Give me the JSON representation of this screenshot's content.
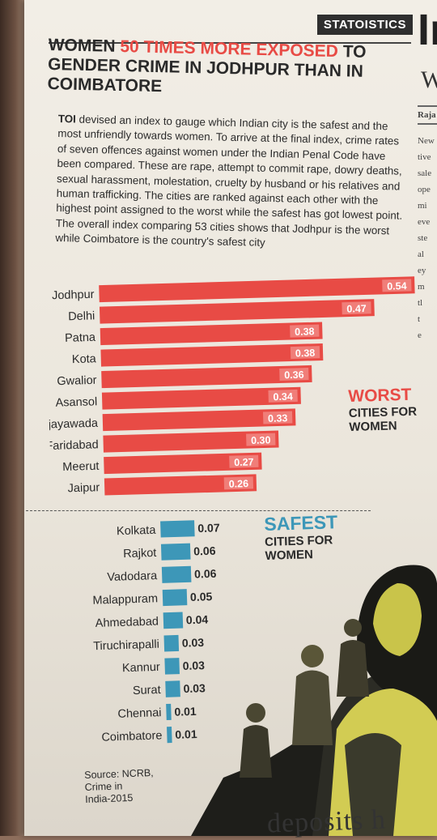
{
  "kicker": "STATOISTICS",
  "headline": {
    "part1": "WOMEN ",
    "highlight": "50 TIMES MORE EXPOSED",
    "part2": " TO GENDER CRIME IN JODHPUR THAN IN COIMBATORE"
  },
  "intro": {
    "lead": "TOI",
    "text": " devised an index to gauge which Indian city is the safest and the most unfriendly towards women. To arrive at the final index, crime rates of seven offences against women under the Indian Penal Code have been compared. These are rape, attempt to commit rape, dowry deaths, sexual harassment, molestation, cruelty by husband or his relatives and human trafficking. The cities are ranked against each other with the highest point assigned to the worst while the safest has got lowest point. The overall index comparing 53 cities shows that Jodhpur is the worst while Coimbatore is the country's safest city"
  },
  "captions": {
    "worst_big": "WORST",
    "worst_small_1": "CITIES FOR",
    "worst_small_2": "WOMEN",
    "safest_big": "SAFEST",
    "safest_small_1": "CITIES FOR",
    "safest_small_2": "WOMEN"
  },
  "source": {
    "line1": "Source: NCRB,",
    "line2": "Crime in",
    "line3": "India-2015"
  },
  "right_column": {
    "big_letter": "In",
    "small_letter": "W",
    "byline": "Raja",
    "lines": [
      "New",
      "tive",
      "sale",
      "ope",
      "mi",
      "eve",
      "ste",
      "al",
      "ey",
      "m",
      "tl",
      "t",
      "e"
    ]
  },
  "bottom_text": "deposits h",
  "colors": {
    "worst_bar": "#e84b45",
    "safest_bar": "#3d97b8",
    "text": "#2a2a2a"
  },
  "chart_data": [
    {
      "type": "bar",
      "orientation": "horizontal",
      "title": "WORST CITIES FOR WOMEN",
      "categories": [
        "Jodhpur",
        "Delhi",
        "Patna",
        "Kota",
        "Gwalior",
        "Asansol",
        "Vijayawada",
        "Faridabad",
        "Meerut",
        "Jaipur"
      ],
      "values": [
        0.54,
        0.47,
        0.38,
        0.38,
        0.36,
        0.34,
        0.33,
        0.3,
        0.27,
        0.26
      ],
      "labels": [
        "0.54",
        "0.47",
        "0.38",
        "0.38",
        "0.36",
        "0.34",
        "0.33",
        "0.30",
        "0.27",
        "0.26"
      ],
      "xlim": [
        0,
        0.54
      ],
      "grid": false,
      "value_label_position": "inside-end"
    },
    {
      "type": "bar",
      "orientation": "horizontal",
      "title": "SAFEST CITIES FOR WOMEN",
      "categories": [
        "Kolkata",
        "Rajkot",
        "Vadodara",
        "Malappuram",
        "Ahmedabad",
        "Tiruchirapalli",
        "Kannur",
        "Surat",
        "Chennai",
        "Coimbatore"
      ],
      "values": [
        0.07,
        0.06,
        0.06,
        0.05,
        0.04,
        0.03,
        0.03,
        0.03,
        0.01,
        0.01
      ],
      "labels": [
        "0.07",
        "0.06",
        "0.06",
        "0.05",
        "0.04",
        "0.03",
        "0.03",
        "0.03",
        "0.01",
        "0.01"
      ],
      "xlim": [
        0,
        0.07
      ],
      "grid": false,
      "value_label_position": "outside-end"
    }
  ]
}
